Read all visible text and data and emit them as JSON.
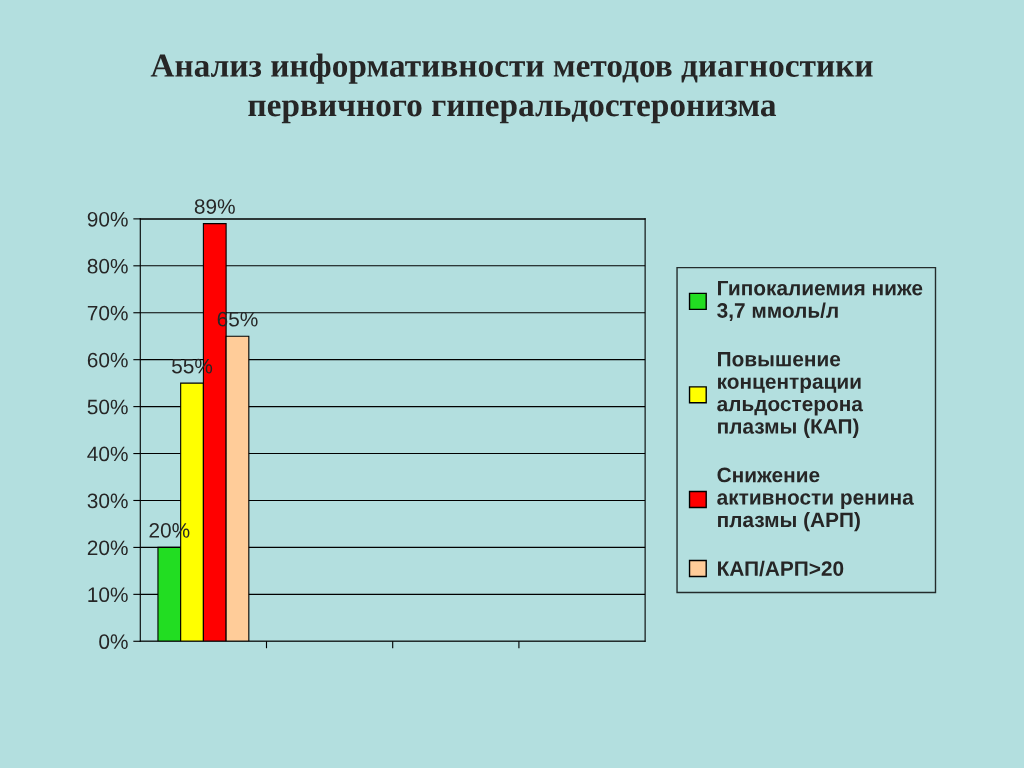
{
  "chart_data": {
    "type": "bar",
    "title": "Анализ информативности методов диагностики\nпервичного гиперальдостеронизма",
    "categories": [
      null,
      null,
      null,
      null
    ],
    "series": [
      {
        "name": "Гипокалиемия ниже\n3,7 ммоль/л",
        "color": "#22dd22",
        "values": [
          20,
          null,
          null,
          null
        ],
        "value_labels": [
          "20%",
          null,
          null,
          null
        ]
      },
      {
        "name": "Повышение\nконцентрации\nальдостерона\nплазмы (КАП)",
        "color": "#ffff00",
        "values": [
          55,
          null,
          null,
          null
        ],
        "value_labels": [
          "55%",
          null,
          null,
          null
        ]
      },
      {
        "name": "Снижение\nактивности ренина\nплазмы (АРП)",
        "color": "#ff0000",
        "values": [
          89,
          null,
          null,
          null
        ],
        "value_labels": [
          "89%",
          null,
          null,
          null
        ]
      },
      {
        "name": "КАП/АРП>20",
        "color": "#ffcc99",
        "values": [
          65,
          null,
          null,
          null
        ],
        "value_labels": [
          "65%",
          null,
          null,
          null
        ]
      }
    ],
    "ylim": [
      0,
      90
    ],
    "yticks": [
      {
        "value": 0,
        "label": "0%"
      },
      {
        "value": 10,
        "label": "10%"
      },
      {
        "value": 20,
        "label": "20%"
      },
      {
        "value": 30,
        "label": "30%"
      },
      {
        "value": 40,
        "label": "40%"
      },
      {
        "value": 50,
        "label": "50%"
      },
      {
        "value": 60,
        "label": "60%"
      },
      {
        "value": 70,
        "label": "70%"
      },
      {
        "value": 80,
        "label": "80%"
      },
      {
        "value": 90,
        "label": "90%"
      }
    ],
    "grid": "y",
    "legend": "right"
  }
}
